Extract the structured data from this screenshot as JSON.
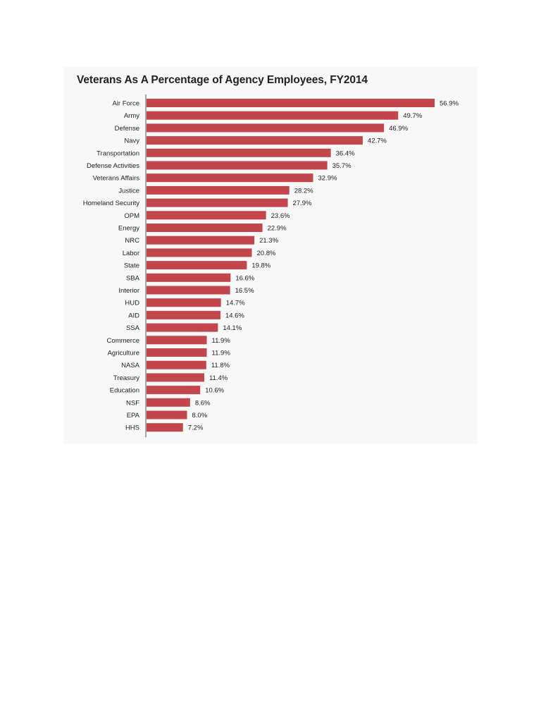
{
  "chart_data": {
    "type": "bar",
    "orientation": "horizontal",
    "title": "Veterans As A Percentage of Agency Employees, FY2014",
    "xlabel": "",
    "ylabel": "",
    "xlim": [
      0,
      56.9
    ],
    "grid": false,
    "legend": "none",
    "bar_color": "#c2464b",
    "categories": [
      "Air Force",
      "Army",
      "Defense",
      "Navy",
      "Transportation",
      "Defense Activities",
      "Veterans Affairs",
      "Justice",
      "Homeland Security",
      "OPM",
      "Energy",
      "NRC",
      "Labor",
      "State",
      "SBA",
      "Interior",
      "HUD",
      "AID",
      "SSA",
      "Commerce",
      "Agriculture",
      "NASA",
      "Treasury",
      "Education",
      "NSF",
      "EPA",
      "HHS"
    ],
    "values": [
      56.9,
      49.7,
      46.9,
      42.7,
      36.4,
      35.7,
      32.9,
      28.2,
      27.9,
      23.6,
      22.9,
      21.3,
      20.8,
      19.8,
      16.6,
      16.5,
      14.7,
      14.6,
      14.1,
      11.9,
      11.9,
      11.8,
      11.4,
      10.6,
      8.6,
      8.0,
      7.2
    ],
    "value_labels": [
      "56.9%",
      "49.7%",
      "46.9%",
      "42.7%",
      "36.4%",
      "35.7%",
      "32.9%",
      "28.2%",
      "27.9%",
      "23.6%",
      "22.9%",
      "21.3%",
      "20.8%",
      "19.8%",
      "16.6%",
      "16.5%",
      "14.7%",
      "14.6%",
      "14.1%",
      "11.9%",
      "11.9%",
      "11.8%",
      "11.4%",
      "10.6%",
      "8.6%",
      "8.0%",
      "7.2%"
    ]
  }
}
